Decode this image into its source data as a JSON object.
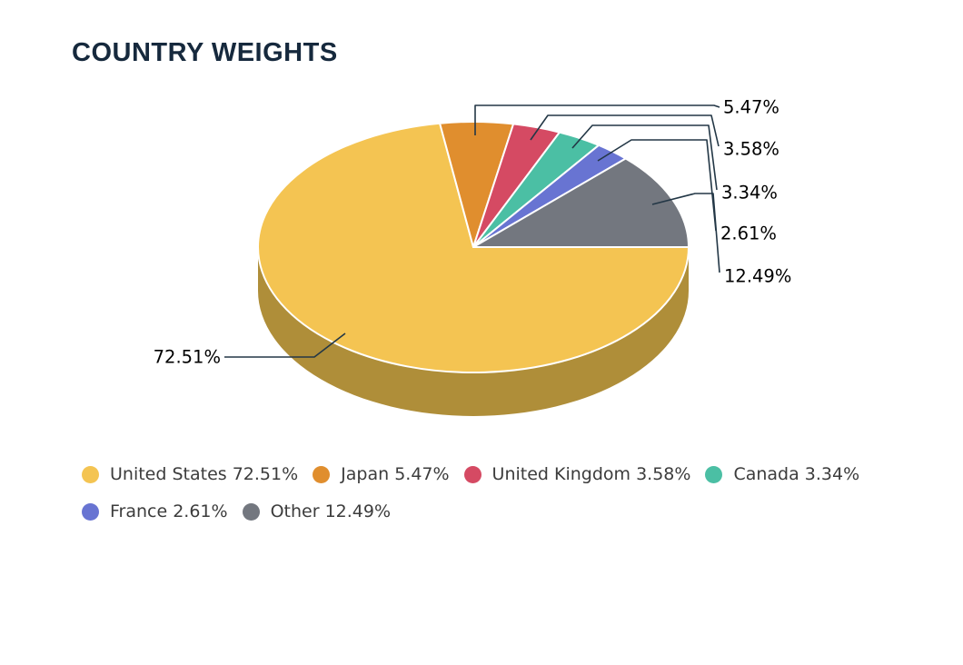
{
  "page": {
    "background": "#FFFFFF"
  },
  "header": {
    "title": "COUNTRY WEIGHTS",
    "title_color": "#16293D"
  },
  "chart_data": {
    "type": "pie",
    "style": "3d-donutless-pie",
    "title": "COUNTRY WEIGHTS",
    "unit": "%",
    "direction": "clockwise",
    "start_angle_clock_deg": 90,
    "legend_position": "bottom-left",
    "legend_rows": [
      [
        0,
        1,
        2,
        3
      ],
      [
        4,
        5
      ]
    ],
    "series": [
      {
        "name": "United States",
        "value": 72.51,
        "color": "#F4C452",
        "side_color": "#AF8E39",
        "legend_label": "United States 72.51%",
        "callout_label": "72.51%"
      },
      {
        "name": "Japan",
        "value": 5.47,
        "color": "#E08E2E",
        "legend_label": "Japan 5.47%",
        "callout_label": "5.47%"
      },
      {
        "name": "United Kingdom",
        "value": 3.58,
        "color": "#D54A63",
        "legend_label": "United Kingdom 3.58%",
        "callout_label": "3.58%"
      },
      {
        "name": "Canada",
        "value": 3.34,
        "color": "#4BBFA4",
        "legend_label": "Canada 3.34%",
        "callout_label": "3.34%"
      },
      {
        "name": "France",
        "value": 2.61,
        "color": "#6874D2",
        "legend_label": "France 2.61%",
        "callout_label": "2.61%"
      },
      {
        "name": "Other",
        "value": 12.49,
        "color": "#73777F",
        "legend_label": "Other 12.49%",
        "callout_label": "12.49%"
      }
    ],
    "colors": {
      "leader_line": "#233746",
      "callout_text": "#000000",
      "legend_text": "#3C3C3C"
    }
  }
}
